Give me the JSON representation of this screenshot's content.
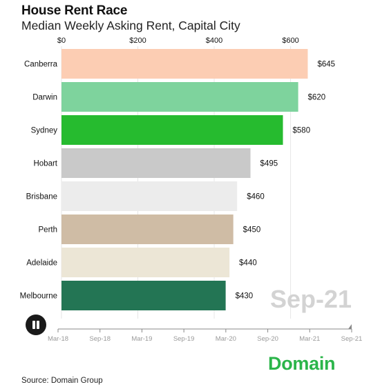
{
  "title": "House Rent Race",
  "subtitle": "Median Weekly Asking Rent, Capital City",
  "source": "Source: Domain Group",
  "logo_text": "Domain",
  "period_label": "Sep-21",
  "play_control": {
    "icon": "pause-icon"
  },
  "chart_data": {
    "type": "bar",
    "orientation": "horizontal",
    "categories": [
      "Canberra",
      "Darwin",
      "Sydney",
      "Hobart",
      "Brisbane",
      "Perth",
      "Adelaide",
      "Melbourne"
    ],
    "values": [
      645,
      620,
      580,
      495,
      460,
      450,
      440,
      430
    ],
    "value_labels": [
      "$645",
      "$620",
      "$580",
      "$495",
      "$460",
      "$450",
      "$440",
      "$430"
    ],
    "colors": [
      "#fccdb3",
      "#7ed39d",
      "#26bb2f",
      "#c9c9c9",
      "#ececec",
      "#cfbca5",
      "#ece6d6",
      "#237554"
    ],
    "xlim": [
      0,
      760
    ],
    "x_ticks": [
      0,
      200,
      400,
      600
    ],
    "x_tick_labels": [
      "$0",
      "$200",
      "$400",
      "$600"
    ],
    "grid": true,
    "timeline": {
      "labels": [
        "Mar-18",
        "Sep-18",
        "Mar-19",
        "Sep-19",
        "Mar-20",
        "Sep-20",
        "Mar-21",
        "Sep-21"
      ],
      "current": "Sep-21",
      "progress": 1.0
    }
  }
}
